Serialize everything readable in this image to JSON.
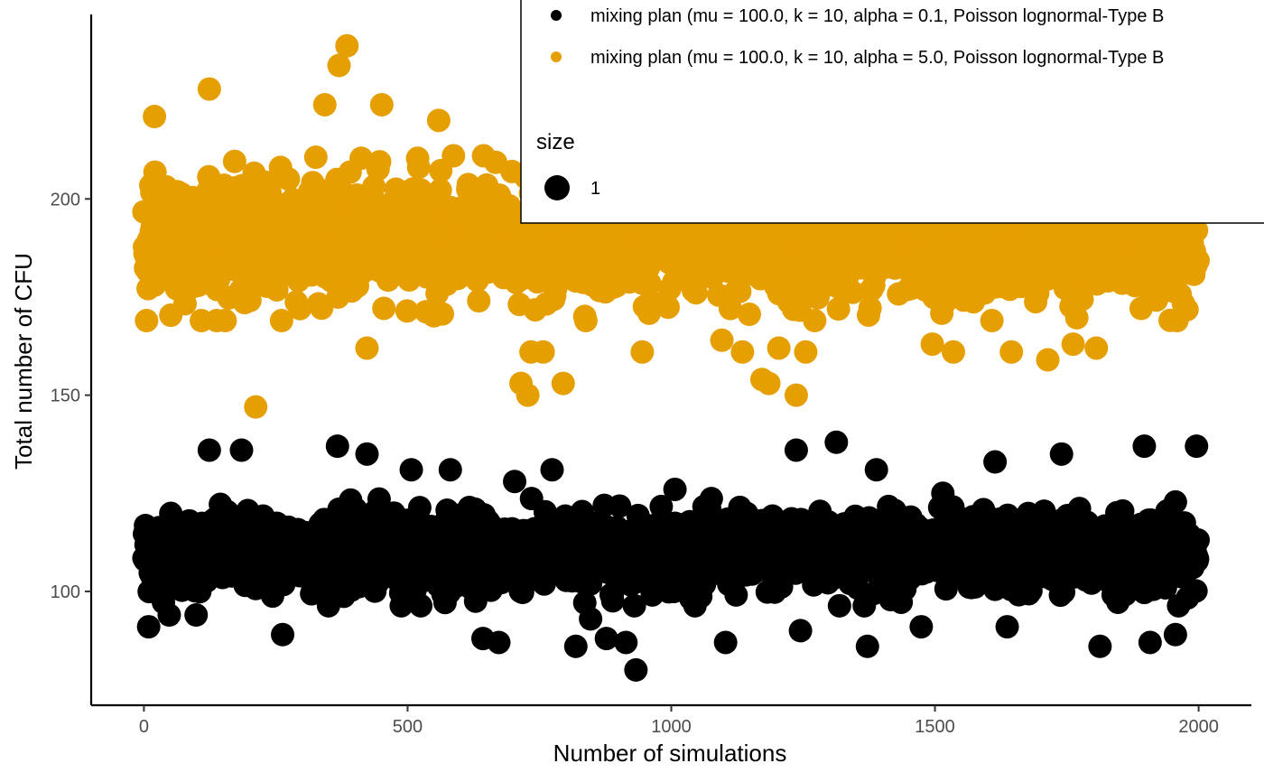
{
  "chart_data": {
    "type": "scatter",
    "title": "",
    "xlabel": "Number of simulations",
    "ylabel": "Total number of CFU",
    "xlim": [
      -100,
      2100
    ],
    "ylim": [
      71,
      247
    ],
    "x_ticks": [
      0,
      500,
      1000,
      1500,
      2000
    ],
    "x_tick_labels": [
      "0",
      "500",
      "1000",
      "1500",
      "2000"
    ],
    "y_ticks": [
      100,
      150,
      200
    ],
    "y_tick_labels": [
      "100",
      "150",
      "200"
    ],
    "grid": false,
    "legend_position": "top-right",
    "size_legend": {
      "title": "size",
      "label": "1"
    },
    "series": [
      {
        "name": "mixing plan (mu = 100.0, k = 10, alpha = 0.1, Poisson lognormal-Type B",
        "color": "#000000",
        "n_points": 2000,
        "center": 110,
        "spread": 6.5,
        "points": [
          [
            9,
            91
          ],
          [
            48,
            94
          ],
          [
            99,
            94
          ],
          [
            124,
            136
          ],
          [
            185,
            136
          ],
          [
            263,
            89
          ],
          [
            367,
            137
          ],
          [
            423,
            135
          ],
          [
            507,
            131
          ],
          [
            581,
            131
          ],
          [
            643,
            88
          ],
          [
            673,
            87
          ],
          [
            703,
            128
          ],
          [
            774,
            131
          ],
          [
            819,
            86
          ],
          [
            847,
            93
          ],
          [
            877,
            88
          ],
          [
            914,
            87
          ],
          [
            933,
            80
          ],
          [
            1007,
            126
          ],
          [
            1103,
            87
          ],
          [
            1237,
            136
          ],
          [
            1245,
            90
          ],
          [
            1313,
            138
          ],
          [
            1372,
            86
          ],
          [
            1389,
            131
          ],
          [
            1474,
            91
          ],
          [
            1515,
            125
          ],
          [
            1614,
            133
          ],
          [
            1637,
            91
          ],
          [
            1740,
            135
          ],
          [
            1813,
            86
          ],
          [
            1897,
            137
          ],
          [
            1908,
            87
          ],
          [
            1956,
            89
          ],
          [
            1996,
            137
          ]
        ]
      },
      {
        "name": "mixing plan (mu = 100.0, k = 10, alpha = 5.0, Poisson lognormal-Type B",
        "color": "#E69F00",
        "n_points": 2000,
        "center": 190,
        "spread": 10,
        "points": [
          [
            20,
            221
          ],
          [
            124,
            228
          ],
          [
            212,
            147
          ],
          [
            370,
            234
          ],
          [
            385,
            239
          ],
          [
            343,
            224
          ],
          [
            451,
            224
          ],
          [
            423,
            162
          ],
          [
            559,
            220
          ],
          [
            715,
            153
          ],
          [
            734,
            161
          ],
          [
            728,
            150
          ],
          [
            757,
            161
          ],
          [
            795,
            153
          ],
          [
            849,
            223
          ],
          [
            945,
            161
          ],
          [
            1096,
            164
          ],
          [
            1135,
            161
          ],
          [
            1172,
            154
          ],
          [
            1185,
            153
          ],
          [
            1204,
            162
          ],
          [
            1237,
            150
          ],
          [
            1255,
            161
          ],
          [
            1425,
            228
          ],
          [
            1495,
            163
          ],
          [
            1535,
            161
          ],
          [
            1645,
            161
          ],
          [
            1714,
            159
          ],
          [
            1762,
            163
          ],
          [
            1806,
            162
          ],
          [
            1877,
            214
          ],
          [
            1981,
            223
          ]
        ]
      }
    ]
  }
}
